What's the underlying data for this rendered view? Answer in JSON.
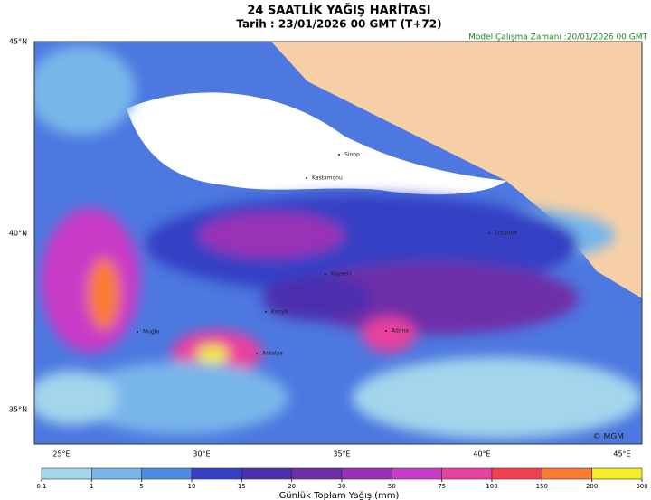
{
  "header": {
    "title": "24 SAATLİK YAĞIŞ HARİTASI",
    "subtitle": "Tarih : 23/01/2026  00 GMT (T+72)",
    "model_time": "Model Çalışma Zamanı :20/01/2026  00 GMT"
  },
  "map": {
    "lat_labels": [
      "45°N",
      "40°N",
      "35°N"
    ],
    "lon_labels": [
      "25°E",
      "30°E",
      "35°E",
      "40°E",
      "45°E"
    ],
    "credit": "© MGM",
    "cities": [
      "Sinop",
      "Kastamonu",
      "Erzurum",
      "Muğla",
      "Antalya",
      "Konya",
      "Kayseri",
      "Adana"
    ]
  },
  "colorbar": {
    "ticks": [
      0.1,
      1,
      5,
      10,
      15,
      20,
      30,
      50,
      75,
      100,
      150,
      200,
      300
    ],
    "colors": [
      "#a3d6ec",
      "#78b6ea",
      "#4b8be4",
      "#3640c4",
      "#4c2fae",
      "#6e2ea8",
      "#9a30b6",
      "#c93ac6",
      "#e8409e",
      "#f2404e",
      "#f97c32",
      "#f6ee22"
    ],
    "label": "Günlük Toplam Yağış (mm)"
  }
}
